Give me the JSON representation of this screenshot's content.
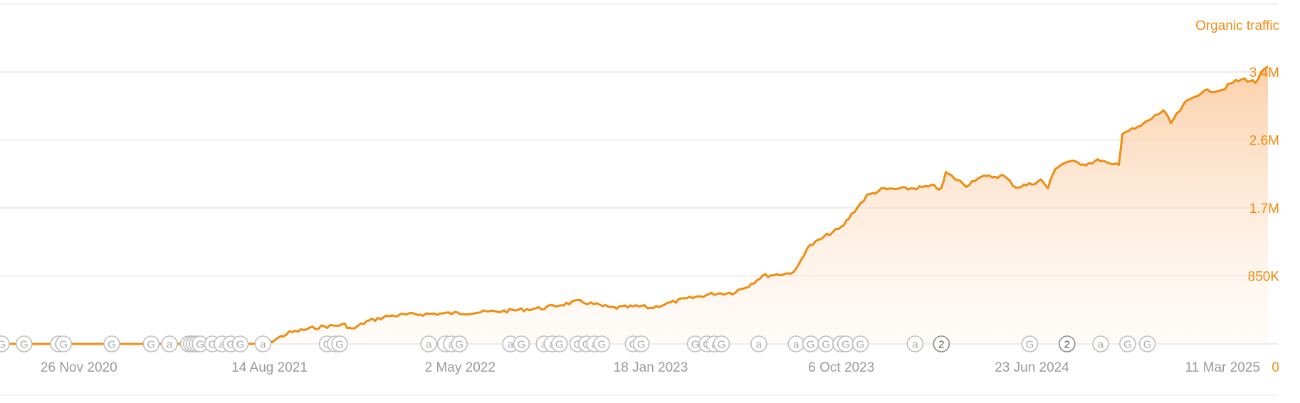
{
  "chart_data": {
    "type": "area",
    "series": [
      {
        "name": "Organic traffic",
        "color": "#f08c10",
        "points": [
          [
            "2020-08-10",
            0
          ],
          [
            "2020-11-26",
            0
          ],
          [
            "2021-02-15",
            0
          ],
          [
            "2021-05-01",
            0
          ],
          [
            "2021-07-20",
            0
          ],
          [
            "2021-08-14",
            20000
          ],
          [
            "2021-09-10",
            140000
          ],
          [
            "2021-10-20",
            210000
          ],
          [
            "2021-11-25",
            240000
          ],
          [
            "2021-12-05",
            180000
          ],
          [
            "2021-12-25",
            280000
          ],
          [
            "2022-01-25",
            350000
          ],
          [
            "2022-03-01",
            370000
          ],
          [
            "2022-05-02",
            385000
          ],
          [
            "2022-07-01",
            410000
          ],
          [
            "2022-08-25",
            450000
          ],
          [
            "2022-10-10",
            530000
          ],
          [
            "2022-10-20",
            520000
          ],
          [
            "2022-11-25",
            450000
          ],
          [
            "2023-01-05",
            470000
          ],
          [
            "2023-01-18",
            450000
          ],
          [
            "2023-03-01",
            550000
          ],
          [
            "2023-04-15",
            630000
          ],
          [
            "2023-05-10",
            640000
          ],
          [
            "2023-06-01",
            730000
          ],
          [
            "2023-06-20",
            850000
          ],
          [
            "2023-07-25",
            880000
          ],
          [
            "2023-08-05",
            920000
          ],
          [
            "2023-08-20",
            1200000
          ],
          [
            "2023-09-20",
            1380000
          ],
          [
            "2023-10-06",
            1450000
          ],
          [
            "2023-10-20",
            1620000
          ],
          [
            "2023-11-10",
            1850000
          ],
          [
            "2023-11-30",
            1930000
          ],
          [
            "2024-01-05",
            1940000
          ],
          [
            "2024-02-10",
            1970000
          ],
          [
            "2024-02-20",
            1930000
          ],
          [
            "2024-02-26",
            2140000
          ],
          [
            "2024-03-25",
            1980000
          ],
          [
            "2024-04-10",
            2080000
          ],
          [
            "2024-05-15",
            2100000
          ],
          [
            "2024-06-01",
            1960000
          ],
          [
            "2024-06-23",
            2000000
          ],
          [
            "2024-07-05",
            2050000
          ],
          [
            "2024-07-15",
            1950000
          ],
          [
            "2024-07-25",
            2200000
          ],
          [
            "2024-08-10",
            2280000
          ],
          [
            "2024-09-05",
            2250000
          ],
          [
            "2024-09-25",
            2300000
          ],
          [
            "2024-10-10",
            2230000
          ],
          [
            "2024-10-20",
            2260000
          ],
          [
            "2024-10-25",
            2640000
          ],
          [
            "2024-11-15",
            2700000
          ],
          [
            "2024-12-20",
            2920000
          ],
          [
            "2024-12-30",
            2760000
          ],
          [
            "2025-01-20",
            3020000
          ],
          [
            "2025-02-10",
            3150000
          ],
          [
            "2025-03-11",
            3180000
          ],
          [
            "2025-03-25",
            3270000
          ],
          [
            "2025-04-10",
            3310000
          ],
          [
            "2025-04-25",
            3270000
          ],
          [
            "2025-05-03",
            3380000
          ],
          [
            "2025-05-12",
            3470000
          ]
        ]
      }
    ],
    "x_axis": {
      "type": "date",
      "range": [
        "2020-08-10",
        "2025-06-25"
      ],
      "ticks": [
        {
          "date": "2020-11-26",
          "label": "26 Nov 2020"
        },
        {
          "date": "2021-08-14",
          "label": "14 Aug 2021"
        },
        {
          "date": "2022-05-02",
          "label": "2 May 2022"
        },
        {
          "date": "2023-01-18",
          "label": "18 Jan 2023"
        },
        {
          "date": "2023-10-06",
          "label": "6 Oct 2023"
        },
        {
          "date": "2024-06-23",
          "label": "23 Jun 2024"
        },
        {
          "date": "2025-03-11",
          "label": "11 Mar 2025"
        }
      ]
    },
    "y_axis": {
      "range": [
        0,
        3400000
      ],
      "position": "right",
      "grid": true,
      "ticks": [
        {
          "value": 0,
          "label": "0"
        },
        {
          "value": 850000,
          "label": "850K"
        },
        {
          "value": 1700000,
          "label": "1.7M"
        },
        {
          "value": 2550000,
          "label": "2.6M"
        },
        {
          "value": 3400000,
          "label": "3.4M"
        }
      ],
      "gridlines": [
        850000,
        1700000,
        2550000,
        3400000,
        4250000
      ]
    },
    "annotations": [
      {
        "date": "2020-08-12",
        "label": "G"
      },
      {
        "date": "2020-09-12",
        "label": "G"
      },
      {
        "date": "2020-10-29",
        "label": "G"
      },
      {
        "date": "2020-11-05",
        "label": "G"
      },
      {
        "date": "2021-01-10",
        "label": "G"
      },
      {
        "date": "2021-03-05",
        "label": "G"
      },
      {
        "date": "2021-03-30",
        "label": "a"
      },
      {
        "date": "2021-04-25",
        "label": "G"
      },
      {
        "date": "2021-04-29",
        "label": "G"
      },
      {
        "date": "2021-05-03",
        "label": "G"
      },
      {
        "date": "2021-05-07",
        "label": "G"
      },
      {
        "date": "2021-05-11",
        "label": "G"
      },
      {
        "date": "2021-05-28",
        "label": "G"
      },
      {
        "date": "2021-06-10",
        "label": "a"
      },
      {
        "date": "2021-06-22",
        "label": "G"
      },
      {
        "date": "2021-07-05",
        "label": "G"
      },
      {
        "date": "2021-08-05",
        "label": "a"
      },
      {
        "date": "2021-11-01",
        "label": "G"
      },
      {
        "date": "2021-11-12",
        "label": "G"
      },
      {
        "date": "2021-11-18",
        "label": "G"
      },
      {
        "date": "2022-03-20",
        "label": "a"
      },
      {
        "date": "2022-04-12",
        "label": "a"
      },
      {
        "date": "2022-04-20",
        "label": "a"
      },
      {
        "date": "2022-05-01",
        "label": "G"
      },
      {
        "date": "2022-07-10",
        "label": "a"
      },
      {
        "date": "2022-07-25",
        "label": "G"
      },
      {
        "date": "2022-08-25",
        "label": "a"
      },
      {
        "date": "2022-09-05",
        "label": "a"
      },
      {
        "date": "2022-09-15",
        "label": "G"
      },
      {
        "date": "2022-10-10",
        "label": "G"
      },
      {
        "date": "2022-10-22",
        "label": "G"
      },
      {
        "date": "2022-11-02",
        "label": "a"
      },
      {
        "date": "2022-11-12",
        "label": "G"
      },
      {
        "date": "2022-12-25",
        "label": "G"
      },
      {
        "date": "2023-01-05",
        "label": "G"
      },
      {
        "date": "2023-03-20",
        "label": "G"
      },
      {
        "date": "2023-04-05",
        "label": "G"
      },
      {
        "date": "2023-04-15",
        "label": "a"
      },
      {
        "date": "2023-04-25",
        "label": "G"
      },
      {
        "date": "2023-06-15",
        "label": "a"
      },
      {
        "date": "2023-08-05",
        "label": "a"
      },
      {
        "date": "2023-08-25",
        "label": "G"
      },
      {
        "date": "2023-09-15",
        "label": "G"
      },
      {
        "date": "2023-10-05",
        "label": "G"
      },
      {
        "date": "2023-10-12",
        "label": "G"
      },
      {
        "date": "2023-11-01",
        "label": "G"
      },
      {
        "date": "2024-01-15",
        "label": "a"
      },
      {
        "date": "2024-02-20",
        "label": "2"
      },
      {
        "date": "2024-06-20",
        "label": "G"
      },
      {
        "date": "2024-08-10",
        "label": "2"
      },
      {
        "date": "2024-09-25",
        "label": "a"
      },
      {
        "date": "2024-11-01",
        "label": "G"
      },
      {
        "date": "2024-11-28",
        "label": "G"
      }
    ]
  }
}
